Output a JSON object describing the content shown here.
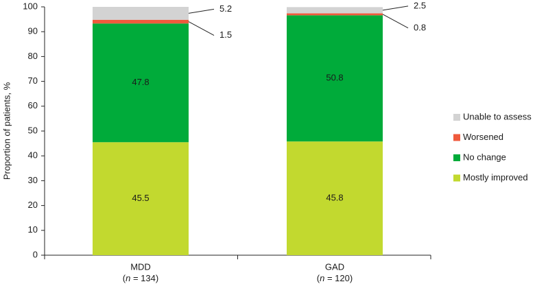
{
  "chart_data": {
    "type": "bar",
    "stacked": true,
    "title": "",
    "xlabel": "",
    "ylabel": "Proportion of patients, %",
    "ylim": [
      0,
      100
    ],
    "yticks": [
      0,
      10,
      20,
      30,
      40,
      50,
      60,
      70,
      80,
      90,
      100
    ],
    "grid": false,
    "legend_position": "right",
    "categories": [
      "MDD",
      "GAD"
    ],
    "category_n": [
      "134",
      "120"
    ],
    "n_prefix": "n",
    "n_joiner": " = ",
    "series": [
      {
        "name": "Mostly improved",
        "color": "#c2d92f",
        "values": [
          45.5,
          45.8
        ],
        "labels": [
          "45.5",
          "45.8"
        ],
        "label_style": "inside"
      },
      {
        "name": "No change",
        "color": "#00ab3a",
        "values": [
          47.8,
          50.8
        ],
        "labels": [
          "47.8",
          "50.8"
        ],
        "label_style": "inside"
      },
      {
        "name": "Worsened",
        "color": "#ef5a3c",
        "values": [
          1.5,
          0.8
        ],
        "labels": [
          "1.5",
          "0.8"
        ],
        "label_style": "callout-below"
      },
      {
        "name": "Unable to assess",
        "color": "#d3d3d3",
        "values": [
          5.2,
          2.5
        ],
        "labels": [
          "5.2",
          "2.5"
        ],
        "label_style": "callout-above"
      }
    ]
  }
}
